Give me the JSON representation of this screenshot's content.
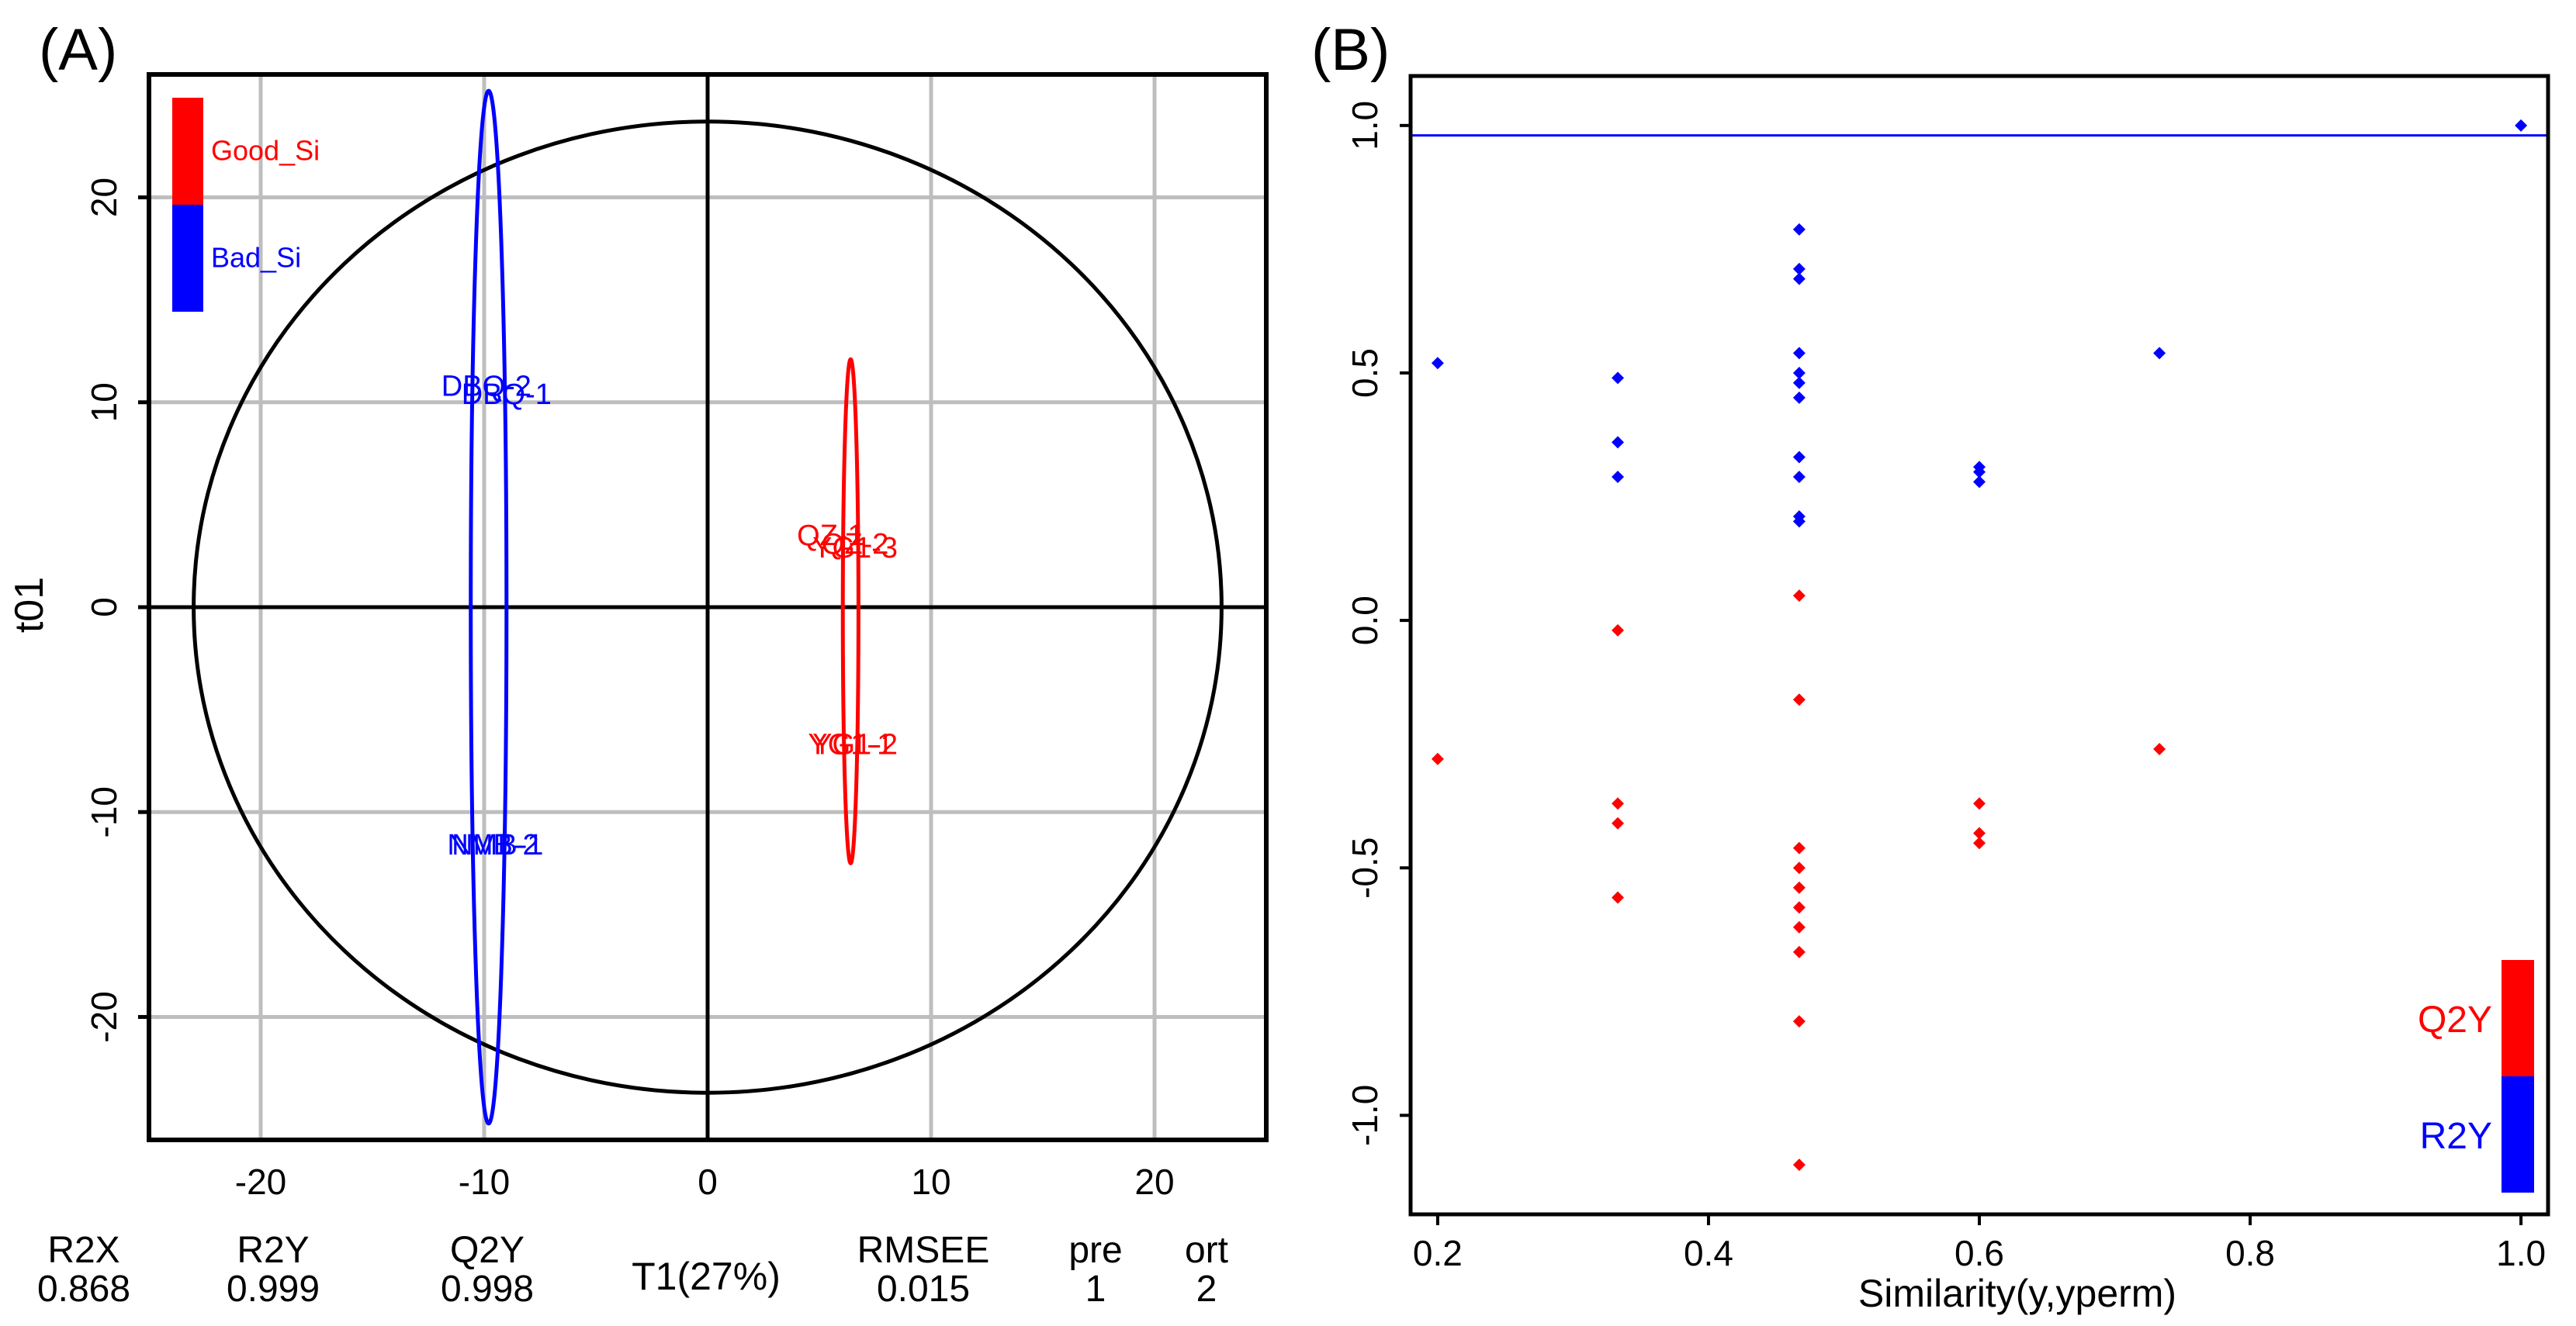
{
  "colors": {
    "good": "#ff0000",
    "bad": "#0000ff",
    "grid": "#bebebe",
    "axis": "#000000"
  },
  "chart_data": [
    {
      "type": "scatter",
      "panel_label": "(A)",
      "title": "",
      "xlabel": "T1(27%)",
      "ylabel": "t01",
      "xlim": [
        -25,
        25
      ],
      "ylim": [
        -26,
        26
      ],
      "xticks": [
        -20,
        -10,
        0,
        10,
        20
      ],
      "yticks": [
        -20,
        -10,
        0,
        10,
        20
      ],
      "grid": true,
      "legend": [
        {
          "label": "Good_Si",
          "color": "#ff0000"
        },
        {
          "label": "Bad_Si",
          "color": "#0000ff"
        }
      ],
      "hotelling_circle": {
        "rx": 23.0,
        "ry": 23.7
      },
      "series": [
        {
          "name": "Bad_Si",
          "color": "#0000ff",
          "ellipse": {
            "cx": -9.8,
            "cy": 0,
            "rx": 0.8,
            "ry": 25.2
          },
          "labels": [
            {
              "text": "DBQ-2",
              "x": -9.9,
              "y": 10.7
            },
            {
              "text": "DBQ-1",
              "x": -9.0,
              "y": 10.3
            },
            {
              "text": "NMB-2",
              "x": -9.6,
              "y": -11.7
            },
            {
              "text": "NMB-1",
              "x": -9.4,
              "y": -11.7
            }
          ]
        },
        {
          "name": "Good_Si",
          "color": "#ff0000",
          "ellipse": {
            "cx": 6.4,
            "cy": -0.2,
            "rx": 0.35,
            "ry": 12.3
          },
          "labels": [
            {
              "text": "QZ-1",
              "x": 5.5,
              "y": 3.4
            },
            {
              "text": "YG1-3",
              "x": 6.6,
              "y": 2.8
            },
            {
              "text": "QZ-2",
              "x": 6.6,
              "y": 3.0
            },
            {
              "text": "YG1-1",
              "x": 6.4,
              "y": -6.8
            },
            {
              "text": "YG1-2",
              "x": 6.6,
              "y": -6.8
            }
          ]
        }
      ],
      "stats": [
        {
          "name": "R2X",
          "value": "0.868"
        },
        {
          "name": "R2Y",
          "value": "0.999"
        },
        {
          "name": "Q2Y",
          "value": "0.998"
        },
        {
          "name": "RMSEE",
          "value": "0.015"
        },
        {
          "name": "pre",
          "value": "1"
        },
        {
          "name": "ort",
          "value": "2"
        }
      ]
    },
    {
      "type": "scatter",
      "panel_label": "(B)",
      "title": "",
      "xlabel": "Similarity(y,yperm)",
      "ylabel": "",
      "xlim": [
        0.18,
        1.02
      ],
      "ylim": [
        -1.2,
        1.1
      ],
      "xticks": [
        0.2,
        0.4,
        0.6,
        0.8,
        1.0
      ],
      "yticks": [
        -1.0,
        -0.5,
        0.0,
        0.5,
        1.0
      ],
      "grid": false,
      "hline": {
        "y": 0.98,
        "color": "#0000ff"
      },
      "legend": [
        {
          "label": "Q2Y",
          "color": "#ff0000"
        },
        {
          "label": "R2Y",
          "color": "#0000ff"
        }
      ],
      "series": [
        {
          "name": "R2Y",
          "color": "#0000ff",
          "points": [
            [
              0.2,
              0.52
            ],
            [
              0.333,
              0.49
            ],
            [
              0.333,
              0.36
            ],
            [
              0.333,
              0.29
            ],
            [
              0.467,
              0.79
            ],
            [
              0.467,
              0.71
            ],
            [
              0.467,
              0.69
            ],
            [
              0.467,
              0.54
            ],
            [
              0.467,
              0.5
            ],
            [
              0.467,
              0.48
            ],
            [
              0.467,
              0.45
            ],
            [
              0.467,
              0.33
            ],
            [
              0.467,
              0.29
            ],
            [
              0.467,
              0.21
            ],
            [
              0.467,
              0.2
            ],
            [
              0.6,
              0.31
            ],
            [
              0.6,
              0.3
            ],
            [
              0.6,
              0.28
            ],
            [
              0.733,
              0.54
            ],
            [
              1.0,
              1.0
            ]
          ]
        },
        {
          "name": "Q2Y",
          "color": "#ff0000",
          "points": [
            [
              0.2,
              -0.28
            ],
            [
              0.333,
              -0.02
            ],
            [
              0.333,
              -0.37
            ],
            [
              0.333,
              -0.41
            ],
            [
              0.333,
              -0.56
            ],
            [
              0.467,
              0.05
            ],
            [
              0.467,
              -0.16
            ],
            [
              0.467,
              -0.46
            ],
            [
              0.467,
              -0.5
            ],
            [
              0.467,
              -0.54
            ],
            [
              0.467,
              -0.58
            ],
            [
              0.467,
              -0.62
            ],
            [
              0.467,
              -0.67
            ],
            [
              0.467,
              -0.81
            ],
            [
              0.467,
              -1.1
            ],
            [
              0.6,
              -0.37
            ],
            [
              0.6,
              -0.43
            ],
            [
              0.6,
              -0.45
            ],
            [
              0.733,
              -0.26
            ]
          ]
        }
      ]
    }
  ]
}
